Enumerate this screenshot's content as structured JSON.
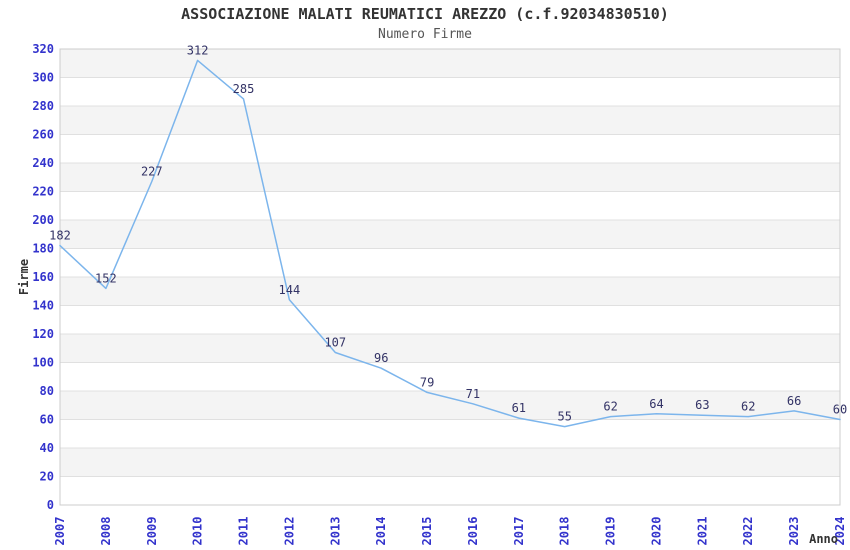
{
  "chart_data": {
    "type": "line",
    "title": "ASSOCIAZIONE MALATI REUMATICI AREZZO (c.f.92034830510)",
    "subtitle": "Numero Firme",
    "xlabel": "Anno",
    "ylabel": "Firme",
    "x": [
      "2007",
      "2008",
      "2009",
      "2010",
      "2011",
      "2012",
      "2013",
      "2014",
      "2015",
      "2016",
      "2017",
      "2018",
      "2019",
      "2020",
      "2021",
      "2022",
      "2023",
      "2024"
    ],
    "series": [
      {
        "name": "Numero Firme",
        "values": [
          182,
          152,
          227,
          312,
          285,
          144,
          107,
          96,
          79,
          71,
          61,
          55,
          62,
          64,
          63,
          62,
          66,
          60
        ]
      }
    ],
    "ylim": [
      0,
      320
    ],
    "ytick_step": 20,
    "grid": true,
    "plot_bands_alternating": true,
    "legend": "none"
  },
  "colors": {
    "title": "#333333",
    "subtitle": "#555555",
    "axis_tick_label": "#3333cc",
    "data_label": "#333366",
    "line": "#7cb5ec",
    "band_fill": "#f4f4f4",
    "grid_line": "#e0e0e0",
    "plot_border": "#cccccc",
    "axis_title": "#333333",
    "background": "#ffffff"
  }
}
